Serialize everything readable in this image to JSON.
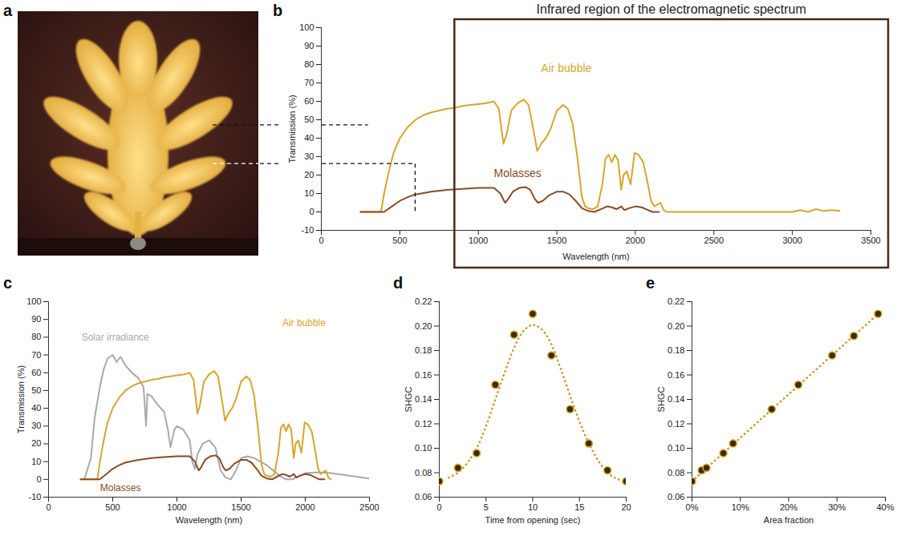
{
  "chart_data": [
    {
      "panel": "a",
      "type": "image"
    },
    {
      "panel": "b",
      "type": "line",
      "title": "Infrared region of the electromagnetic spectrum",
      "x_label": "Wavelength (nm)",
      "y_label": "Transmission (%)",
      "xlim": [
        0,
        3500
      ],
      "xticks": [
        0,
        500,
        1000,
        1500,
        2000,
        2500,
        3000,
        3500
      ],
      "ylim": [
        -10,
        100
      ],
      "yticks": [
        -10,
        0,
        10,
        20,
        30,
        40,
        50,
        60,
        70,
        80,
        90,
        100
      ],
      "highlight_region": [
        850,
        3500
      ],
      "reference_lines": [
        {
          "y": 47,
          "x": 300
        },
        {
          "y": 26,
          "x": 600,
          "to_zero": true
        }
      ],
      "series": [
        {
          "name": "Air bubble",
          "color": "#d6a62c",
          "x": [
            250,
            380,
            400,
            430,
            460,
            500,
            550,
            600,
            650,
            700,
            750,
            800,
            850,
            900,
            950,
            1000,
            1050,
            1100,
            1130,
            1160,
            1180,
            1210,
            1250,
            1290,
            1320,
            1350,
            1375,
            1400,
            1430,
            1460,
            1500,
            1540,
            1570,
            1600,
            1630,
            1660,
            1680,
            1700,
            1730,
            1760,
            1790,
            1810,
            1830,
            1850,
            1870,
            1890,
            1910,
            1925,
            1945,
            1970,
            1995,
            2020,
            2050,
            2080,
            2100,
            2120,
            2140,
            2160,
            2180,
            2200,
            2500,
            2800,
            3000,
            3050,
            3100,
            3150,
            3200,
            3250,
            3300
          ],
          "values": [
            0,
            0,
            10,
            22,
            32,
            40,
            46,
            50,
            52.5,
            54,
            55,
            56,
            56.5,
            57.5,
            58,
            58.5,
            59,
            60,
            56,
            37,
            42,
            55,
            59,
            61,
            58,
            45,
            33,
            37,
            40,
            45,
            55,
            58,
            56,
            48,
            30,
            8,
            3,
            2,
            1.5,
            3,
            15,
            29,
            31,
            27,
            31,
            28,
            12,
            20,
            22,
            15,
            32,
            31,
            27,
            15,
            6,
            3,
            4,
            5,
            1,
            0,
            0,
            0,
            0,
            1,
            0,
            1.5,
            0.5,
            1,
            0.5
          ]
        },
        {
          "name": "Molasses",
          "color": "#8a4b26",
          "x": [
            250,
            400,
            450,
            500,
            550,
            600,
            700,
            800,
            900,
            1000,
            1100,
            1140,
            1170,
            1190,
            1220,
            1260,
            1300,
            1330,
            1360,
            1380,
            1410,
            1450,
            1500,
            1540,
            1580,
            1620,
            1660,
            1700,
            1740,
            1780,
            1820,
            1850,
            1880,
            1910,
            1930,
            1960,
            2000,
            2040,
            2080,
            2110,
            2150
          ],
          "values": [
            0,
            0,
            3,
            6,
            8,
            9.5,
            11,
            12,
            12.5,
            13,
            13,
            10,
            5,
            7,
            11,
            13,
            13.5,
            12,
            7,
            5,
            6,
            9,
            11,
            11,
            9.5,
            6,
            2,
            0.5,
            0,
            1.5,
            3,
            2.5,
            1.5,
            3,
            1,
            2,
            3,
            2.5,
            1,
            0,
            0
          ]
        }
      ]
    },
    {
      "panel": "c",
      "type": "line",
      "y_label": "Transmission (%)",
      "x_label": "Wavelength (nm)",
      "xlim": [
        0,
        2500
      ],
      "xticks": [
        0,
        500,
        1000,
        1500,
        2000,
        2500
      ],
      "ylim": [
        -10,
        100
      ],
      "yticks": [
        -10,
        0,
        10,
        20,
        30,
        40,
        50,
        60,
        70,
        80,
        90,
        100
      ],
      "series": [
        {
          "name": "Solar irradiance",
          "color": "#a9a9a9",
          "x": [
            280,
            330,
            360,
            400,
            430,
            460,
            500,
            530,
            560,
            600,
            650,
            700,
            740,
            760,
            770,
            800,
            850,
            900,
            930,
            950,
            980,
            1000,
            1050,
            1100,
            1120,
            1140,
            1160,
            1200,
            1250,
            1300,
            1340,
            1380,
            1420,
            1460,
            1500,
            1550,
            1600,
            1650,
            1700,
            1750,
            1800,
            1850,
            1900,
            1950,
            2000,
            2100,
            2200,
            2300,
            2400,
            2500
          ],
          "values": [
            0,
            12,
            35,
            52,
            62,
            68,
            70,
            66,
            69,
            64,
            60,
            57,
            52,
            30,
            48,
            47,
            42,
            38,
            28,
            18,
            28,
            30,
            28,
            22,
            10,
            6,
            14,
            20,
            22,
            18,
            5,
            1,
            0,
            5,
            12,
            13,
            12,
            10,
            8,
            5,
            2,
            0,
            0,
            2,
            3.5,
            4,
            3.5,
            2.5,
            1.5,
            0.5
          ]
        },
        {
          "name": "Air bubble",
          "color": "#d6a62c",
          "x": [
            250,
            380,
            400,
            430,
            460,
            500,
            550,
            600,
            650,
            700,
            750,
            800,
            850,
            900,
            950,
            1000,
            1050,
            1100,
            1130,
            1160,
            1180,
            1210,
            1250,
            1290,
            1320,
            1350,
            1375,
            1400,
            1430,
            1460,
            1500,
            1540,
            1570,
            1600,
            1630,
            1660,
            1680,
            1700,
            1730,
            1760,
            1790,
            1810,
            1830,
            1850,
            1870,
            1890,
            1910,
            1925,
            1945,
            1970,
            1995,
            2020,
            2050,
            2080,
            2100,
            2120,
            2140,
            2160,
            2180,
            2200
          ],
          "values": [
            0,
            0,
            10,
            22,
            32,
            40,
            46,
            50,
            52.5,
            54,
            55,
            56,
            56.5,
            57.5,
            58,
            58.5,
            59,
            60,
            56,
            37,
            42,
            55,
            59,
            61,
            58,
            45,
            33,
            37,
            40,
            45,
            55,
            58,
            56,
            48,
            30,
            8,
            3,
            2,
            1.5,
            3,
            15,
            29,
            31,
            27,
            31,
            28,
            12,
            20,
            22,
            15,
            32,
            31,
            27,
            15,
            6,
            3,
            4,
            5,
            1,
            0
          ]
        },
        {
          "name": "Molasses",
          "color": "#8a4b26",
          "x": [
            250,
            400,
            450,
            500,
            550,
            600,
            700,
            800,
            900,
            1000,
            1100,
            1140,
            1170,
            1190,
            1220,
            1260,
            1300,
            1330,
            1360,
            1380,
            1410,
            1450,
            1500,
            1540,
            1580,
            1620,
            1660,
            1700,
            1740,
            1780,
            1820,
            1850,
            1880,
            1910,
            1930,
            1960,
            2000,
            2040,
            2080,
            2110,
            2150
          ],
          "values": [
            0,
            0,
            3,
            6,
            8,
            9.5,
            11,
            12,
            12.5,
            13,
            13,
            10,
            5,
            7,
            11,
            13,
            13.5,
            12,
            7,
            5,
            6,
            9,
            11,
            11,
            9.5,
            6,
            2,
            0.5,
            0,
            1.5,
            3,
            2.5,
            1.5,
            3,
            1,
            2,
            3,
            2.5,
            1,
            0,
            0
          ]
        }
      ]
    },
    {
      "panel": "d",
      "type": "scatter",
      "x_label": "Time from opening (sec)",
      "y_label": "SHGC",
      "xlim": [
        0,
        20
      ],
      "xticks": [
        0,
        5,
        10,
        15,
        20
      ],
      "ylim": [
        0.06,
        0.22
      ],
      "yticks": [
        0.06,
        0.08,
        {
          "value": 0.1,
          "label": "0.10"
        },
        0.12,
        0.14,
        0.16,
        0.18,
        {
          "value": 0.2,
          "label": "0.20"
        },
        0.22
      ],
      "series": [
        {
          "type": "line",
          "line_style": "dotted",
          "color": "#c9982a",
          "x": [
            1,
            2,
            3,
            4,
            5,
            6,
            7,
            8,
            9,
            10,
            11,
            12,
            13,
            14,
            15,
            16,
            17,
            18,
            19,
            20
          ],
          "values": [
            0.076,
            0.08,
            0.088,
            0.1,
            0.118,
            0.14,
            0.162,
            0.182,
            0.196,
            0.201,
            0.197,
            0.185,
            0.165,
            0.143,
            0.122,
            0.104,
            0.09,
            0.08,
            0.075,
            0.073
          ]
        },
        {
          "type": "scatter",
          "marker": "circle",
          "color": "#3d2a10",
          "x": [
            0,
            2,
            4,
            6,
            8,
            10,
            12,
            14,
            16,
            18,
            20
          ],
          "values": [
            0.073,
            0.084,
            0.096,
            0.152,
            0.193,
            0.21,
            0.176,
            0.132,
            0.104,
            0.082,
            0.073
          ]
        }
      ]
    },
    {
      "panel": "e",
      "type": "scatter",
      "x_label": "Area fraction",
      "y_label": "SHGC",
      "xlim": [
        0,
        40
      ],
      "xticks": [
        {
          "value": 0,
          "label": "0%"
        },
        {
          "value": 10,
          "label": "10%"
        },
        {
          "value": 20,
          "label": "20%"
        },
        {
          "value": 30,
          "label": "30%"
        },
        {
          "value": 40,
          "label": "40%"
        }
      ],
      "ylim": [
        0.06,
        0.22
      ],
      "yticks": [
        0.06,
        0.08,
        {
          "value": 0.1,
          "label": "0.10"
        },
        0.12,
        0.14,
        0.16,
        0.18,
        {
          "value": 0.2,
          "label": "0.20"
        },
        0.22
      ],
      "series": [
        {
          "type": "line",
          "line_style": "dotted",
          "color": "#c9982a",
          "x": [
            0,
            38.5
          ],
          "values": [
            0.073,
            0.21
          ]
        },
        {
          "type": "scatter",
          "marker": "circle",
          "color": "#3d2a10",
          "x": [
            0,
            2,
            3,
            6.5,
            8.5,
            16.5,
            22,
            29,
            33.5,
            38.5
          ],
          "values": [
            0.073,
            0.082,
            0.084,
            0.096,
            0.104,
            0.132,
            0.152,
            0.176,
            0.192,
            0.21
          ]
        }
      ]
    }
  ]
}
